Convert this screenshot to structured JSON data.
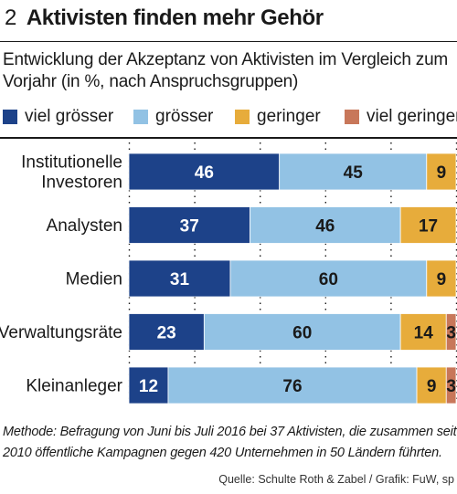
{
  "title": {
    "number": "2",
    "text": "Aktivisten finden mehr Gehör"
  },
  "subtitle": "Entwicklung der Akzeptanz von Aktivisten im Vergleich zum Vorjahr (in %, nach Anspruchsgruppen)",
  "colors": {
    "viel_groesser": "#1d4289",
    "groesser": "#92c2e4",
    "geringer": "#e7ac3b",
    "viel_geringer": "#c8775a"
  },
  "chart_data": {
    "type": "bar",
    "orientation": "horizontal-stacked",
    "xlim": [
      0,
      100
    ],
    "grid": "dotted vertical lines",
    "legend": "top",
    "categories": [
      [
        "Institutionelle",
        "Investoren"
      ],
      [
        "Analysten"
      ],
      [
        "Medien"
      ],
      [
        "Verwaltungsräte"
      ],
      [
        "Kleinanleger"
      ]
    ],
    "series": [
      {
        "name": "viel grösser",
        "color": "#1d4289",
        "values": [
          46,
          37,
          31,
          23,
          12
        ]
      },
      {
        "name": "grösser",
        "color": "#92c2e4",
        "values": [
          45,
          46,
          60,
          60,
          76
        ]
      },
      {
        "name": "geringer",
        "color": "#e7ac3b",
        "values": [
          9,
          17,
          9,
          14,
          9
        ]
      },
      {
        "name": "viel geringer",
        "color": "#c8775a",
        "values": [
          0,
          0,
          0,
          3,
          3
        ]
      }
    ]
  },
  "method": "Methode: Befragung von Juni bis Juli 2016 bei 37 Aktivisten, die zusammen seit 2010 öffentliche Kampagnen gegen 420 Unternehmen in 50 Ländern führten.",
  "source": "Quelle: Schulte Roth & Zabel / Grafik: FuW, sp"
}
